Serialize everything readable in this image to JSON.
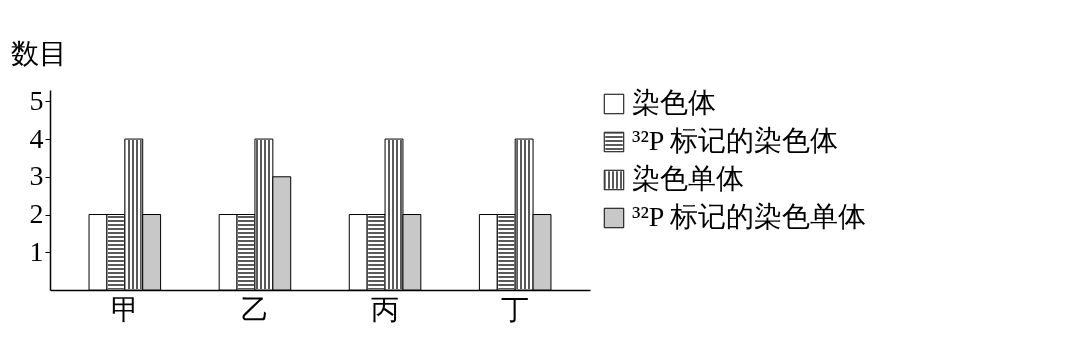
{
  "chart_data": {
    "type": "bar",
    "ylabel": "数目",
    "categories": [
      "甲",
      "乙",
      "丙",
      "丁"
    ],
    "series": [
      {
        "name": "染色体",
        "color": "#ffffff",
        "values": [
          2,
          2,
          2,
          2
        ]
      },
      {
        "name": "³²P 标记的染色体",
        "color": "#ffffff",
        "values": [
          2,
          2,
          2,
          2
        ]
      },
      {
        "name": "染色单体",
        "color": "#ffffff",
        "values": [
          4,
          4,
          4,
          4
        ]
      },
      {
        "name": "³²P 标记的染色单体",
        "color": "#c8c8c8",
        "values": [
          2,
          3,
          2,
          2
        ]
      }
    ],
    "ylim": [
      0,
      5.3
    ],
    "yticks": [
      1,
      2,
      3,
      4,
      5
    ],
    "grid": false,
    "legend": "right"
  }
}
